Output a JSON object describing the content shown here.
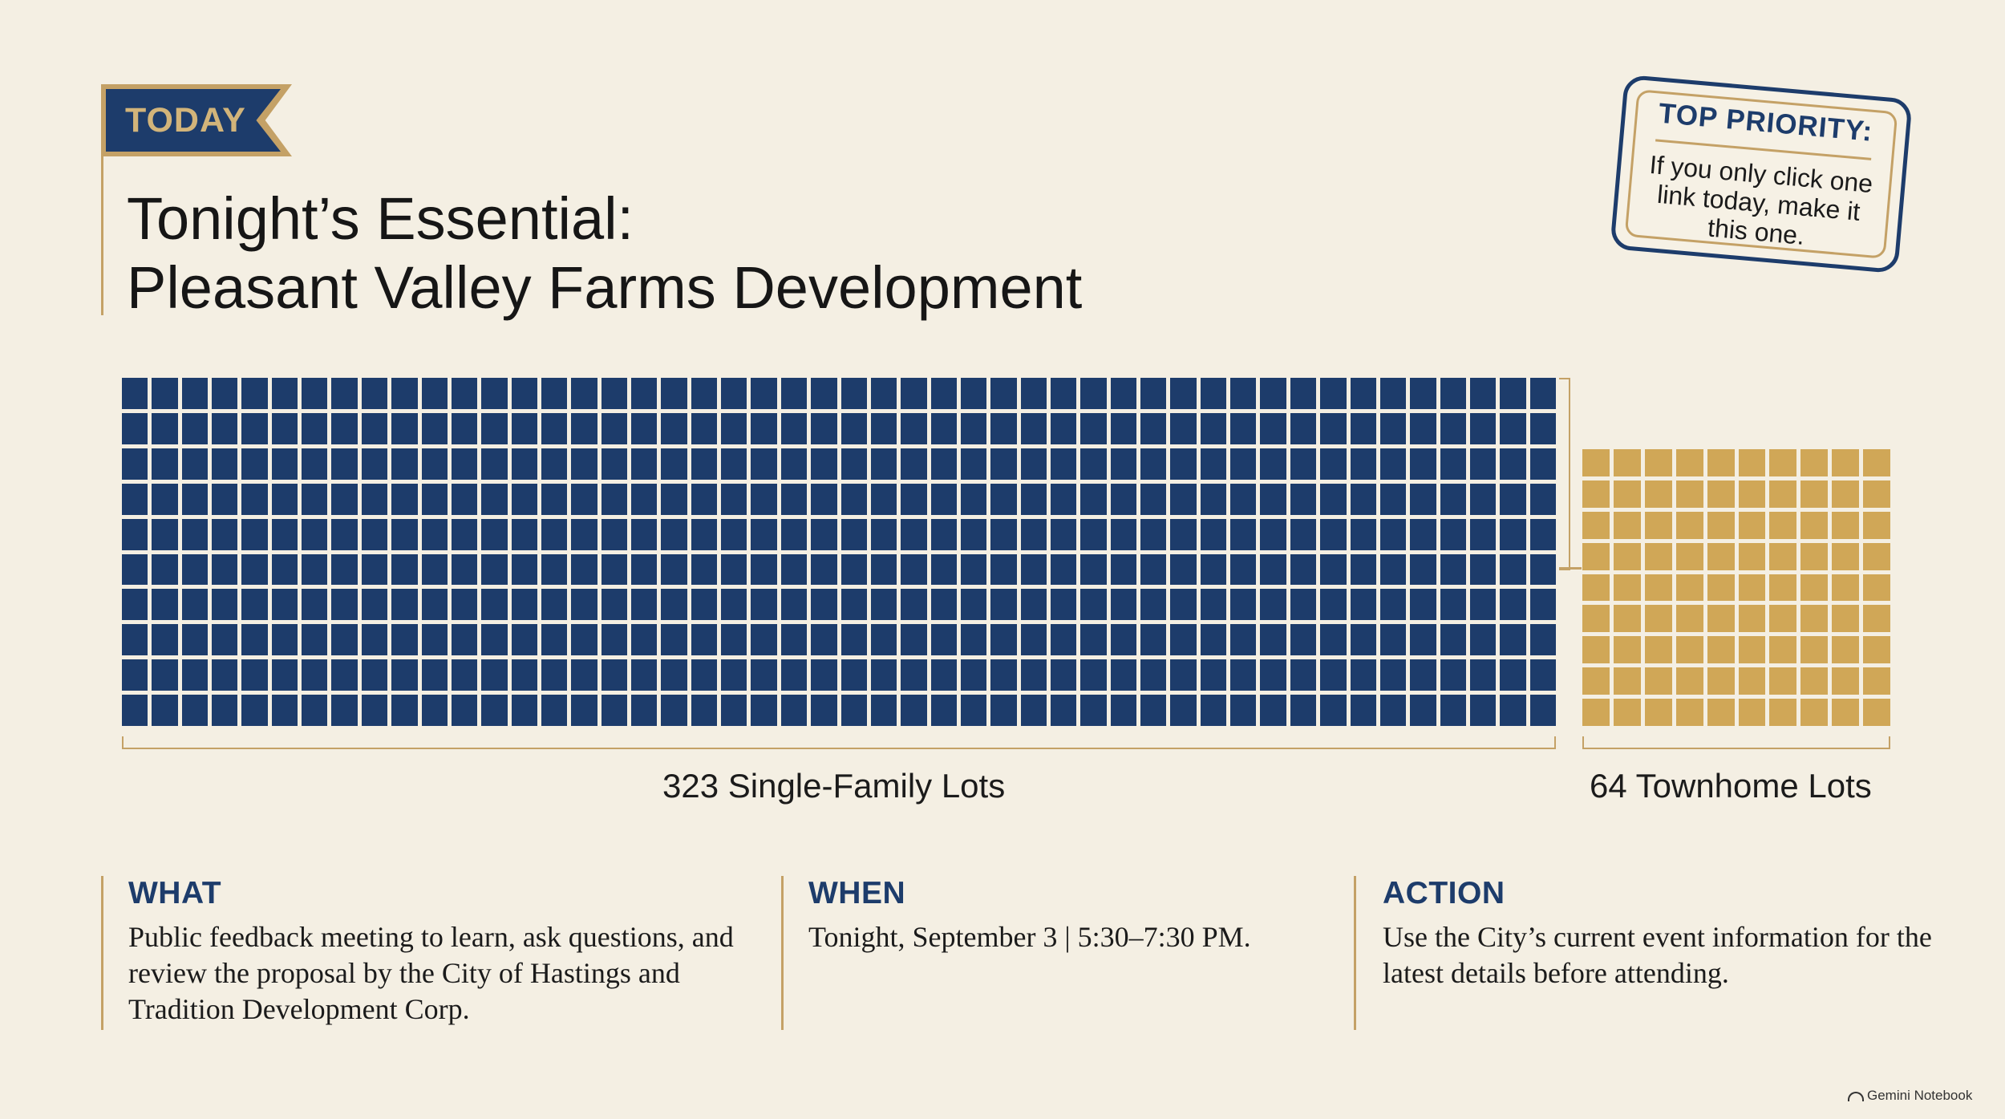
{
  "badge": {
    "label": "TODAY"
  },
  "header": {
    "title_line1": "Tonight’s Essential:",
    "title_line2": "Pleasant Valley Farms Development"
  },
  "stamp": {
    "heading": "TOP PRIORITY:",
    "body_line1": "If you only click one",
    "body_line2": "link today, make it",
    "body_line3": "this one."
  },
  "chart_data": {
    "type": "waffle",
    "series": [
      {
        "name": "323 Single-Family Lots",
        "value": 323,
        "color": "#1d3c6b"
      },
      {
        "name": "64 Townhome Lots",
        "value": 64,
        "color": "#d0a757"
      }
    ],
    "labels": [
      "323 Single-Family Lots",
      "64 Townhome Lots"
    ]
  },
  "details": {
    "what": {
      "heading": "WHAT",
      "body": "Public feedback meeting to learn, ask questions, and review the proposal by the City of Hastings and Tradition Development Corp."
    },
    "when": {
      "heading": "WHEN",
      "body": "Tonight, September 3 | 5:30–7:30 PM."
    },
    "action": {
      "heading": "ACTION",
      "body": "Use the City’s current event information for the latest details before attending."
    }
  },
  "watermark": {
    "label": "Gemini Notebook"
  }
}
